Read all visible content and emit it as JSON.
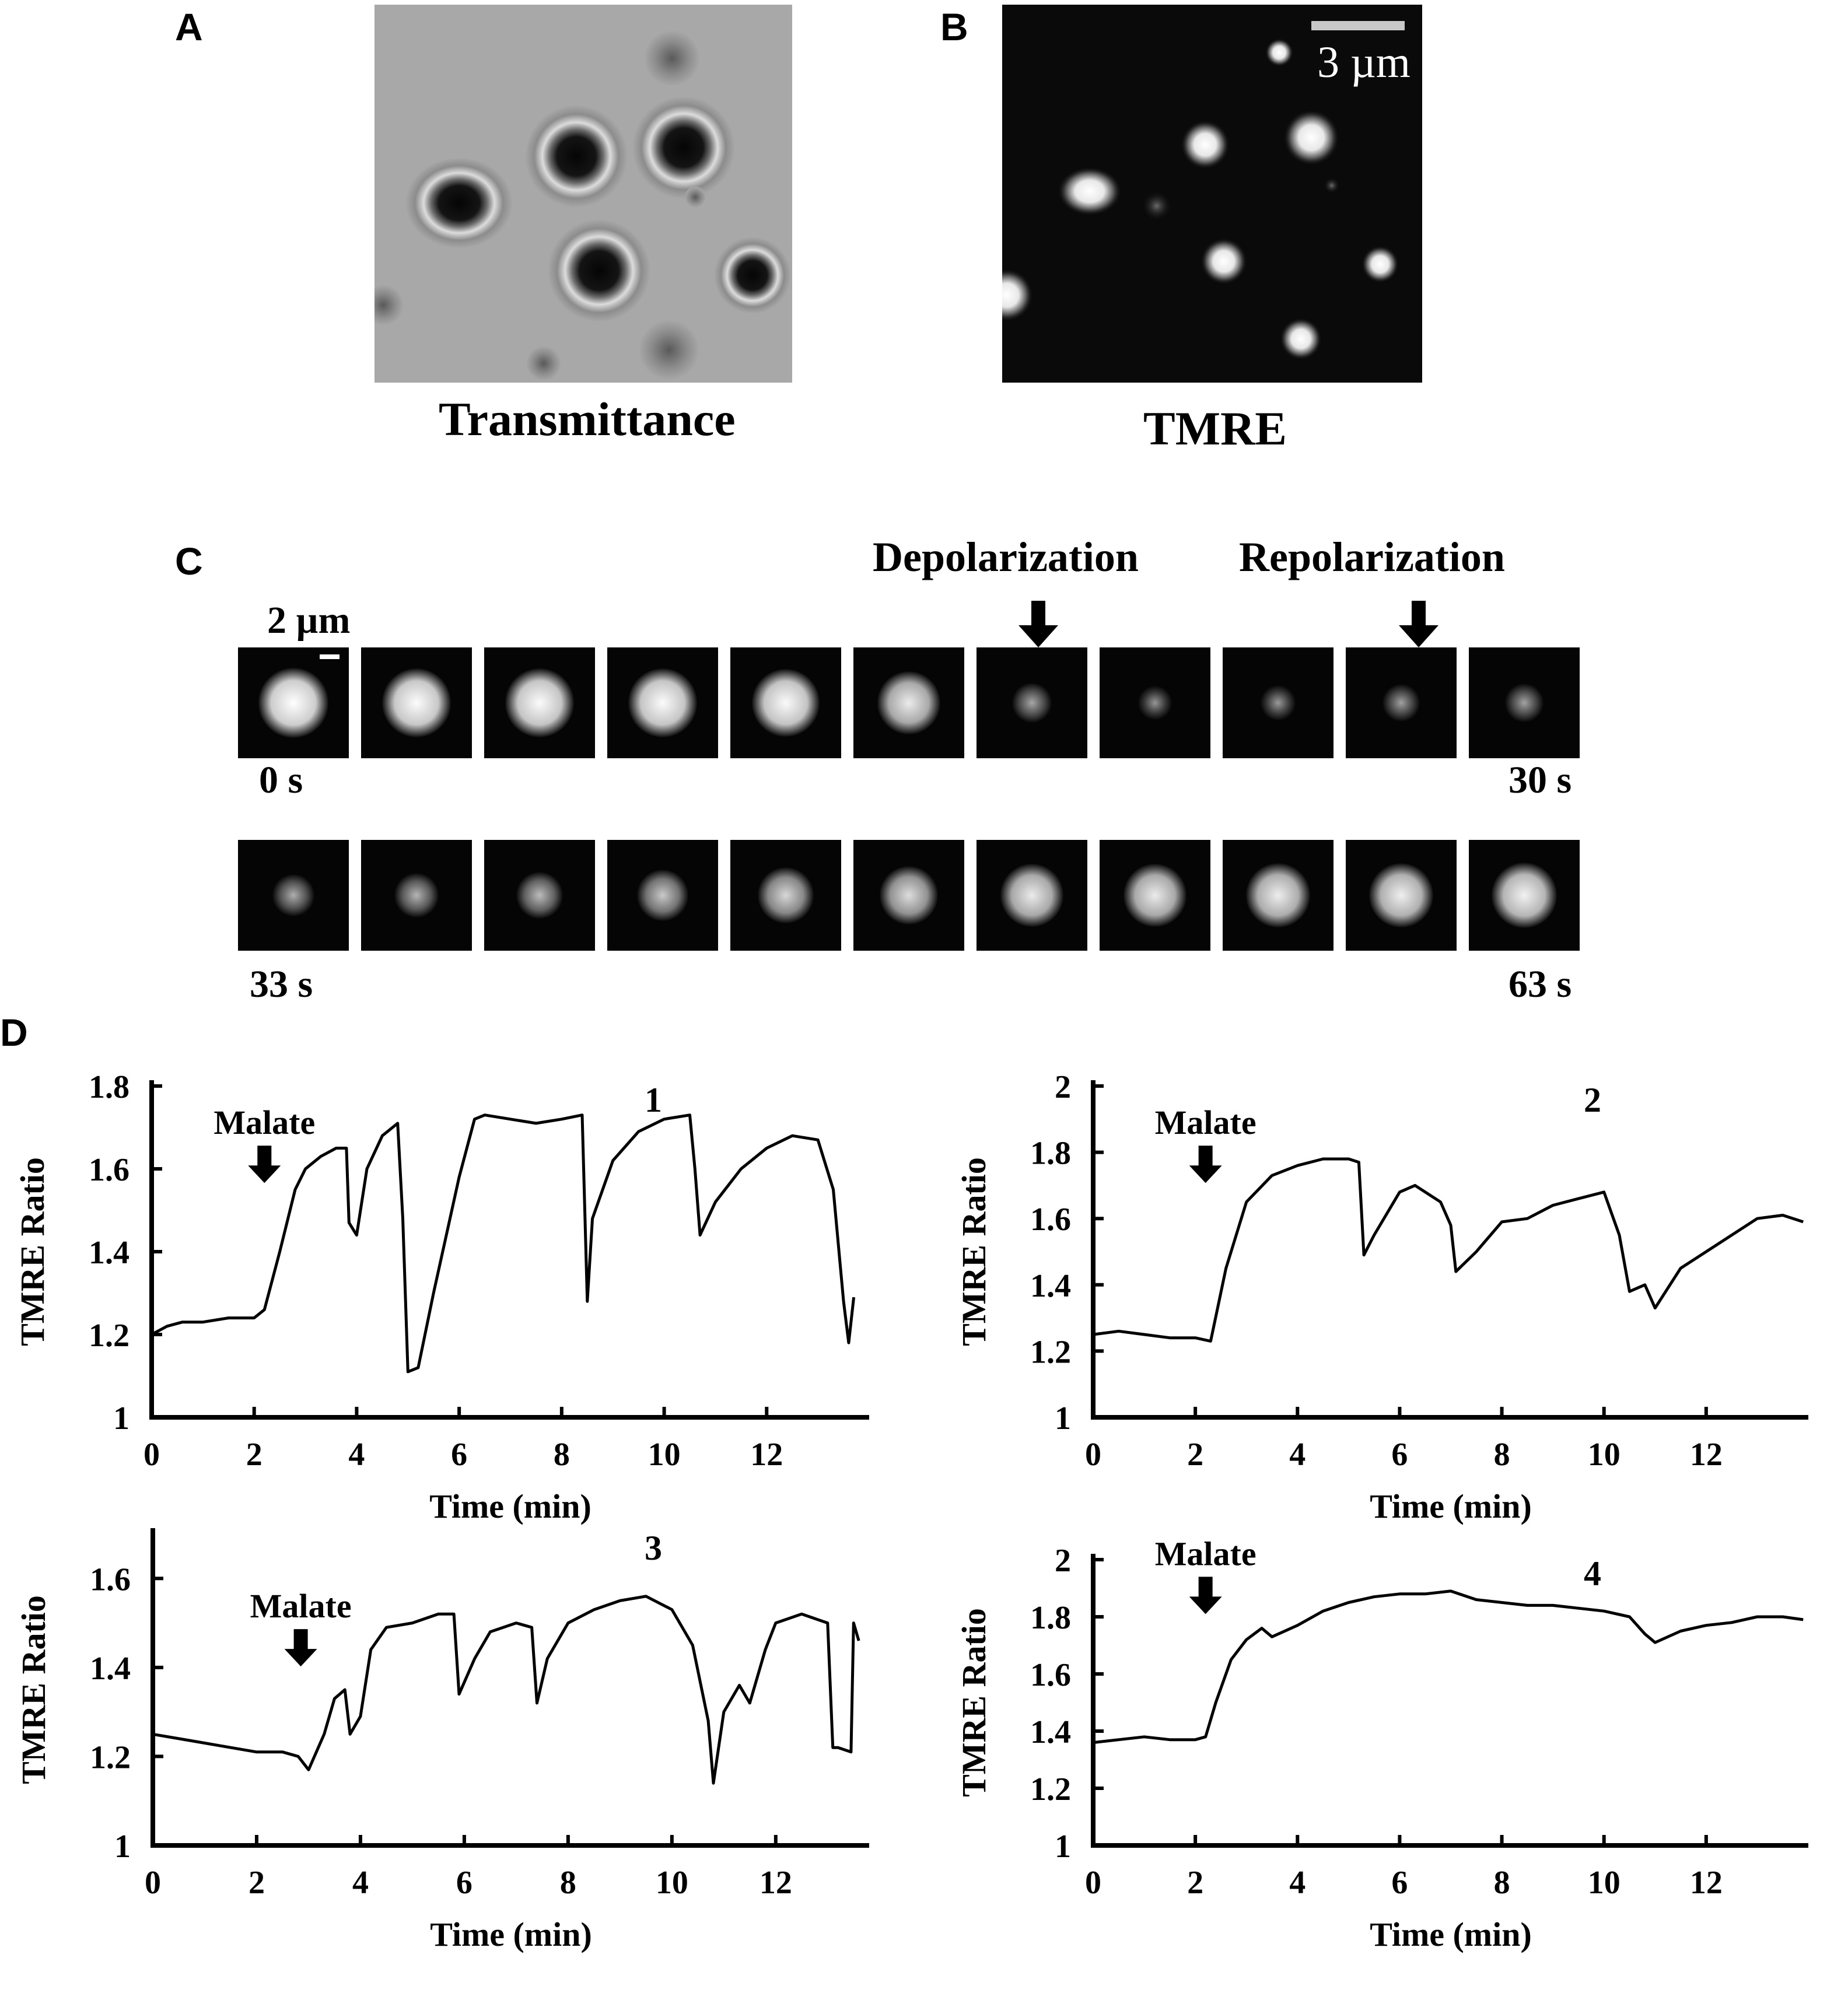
{
  "panels": {
    "A": {
      "letter": "A",
      "caption": "Transmittance"
    },
    "B": {
      "letter": "B",
      "caption": "TMRE",
      "scalebar_label": "3 µm"
    },
    "C": {
      "letter": "C",
      "scalebar_label": "2 µm",
      "depolarization_label": "Depolarization",
      "repolarization_label": "Repolarization",
      "row1_start": "0 s",
      "row1_end": "30 s",
      "row2_start": "33 s",
      "row2_end": "63 s",
      "row1_brightness": [
        1.0,
        0.98,
        0.97,
        0.97,
        0.96,
        0.85,
        0.35,
        0.22,
        0.25,
        0.3,
        0.32
      ],
      "row2_brightness": [
        0.4,
        0.45,
        0.5,
        0.6,
        0.7,
        0.75,
        0.85,
        0.85,
        0.87,
        0.88,
        0.9
      ]
    },
    "D": {
      "letter": "D"
    }
  },
  "chart_data": [
    {
      "type": "line",
      "panel_label": "1",
      "annotation": "Malate",
      "annotation_x": 2.2,
      "xlabel": "Time (min)",
      "ylabel": "TMRE Ratio",
      "xlim": [
        0,
        14
      ],
      "ylim": [
        1,
        1.8
      ],
      "xticks": [
        "0",
        "2",
        "4",
        "6",
        "8",
        "10",
        "12"
      ],
      "yticks": [
        "1",
        "1.2",
        "1.4",
        "1.6",
        "1.8"
      ],
      "series": [
        {
          "x": [
            0,
            0.3,
            0.6,
            1,
            1.5,
            2,
            2.2,
            2.5,
            2.8,
            3,
            3.3,
            3.6,
            3.8,
            3.85,
            4,
            4.2,
            4.5,
            4.8,
            4.9,
            5,
            5.2,
            5.5,
            6,
            6.3,
            6.5,
            7,
            7.5,
            8,
            8.4,
            8.5,
            8.6,
            9,
            9.5,
            10,
            10.5,
            10.6,
            10.7,
            11,
            11.5,
            12,
            12.5,
            13,
            13.3,
            13.5,
            13.6,
            13.7
          ],
          "y": [
            1.2,
            1.22,
            1.23,
            1.23,
            1.24,
            1.24,
            1.26,
            1.4,
            1.55,
            1.6,
            1.63,
            1.65,
            1.65,
            1.47,
            1.44,
            1.6,
            1.68,
            1.71,
            1.48,
            1.11,
            1.12,
            1.3,
            1.58,
            1.72,
            1.73,
            1.72,
            1.71,
            1.72,
            1.73,
            1.28,
            1.48,
            1.62,
            1.69,
            1.72,
            1.73,
            1.6,
            1.44,
            1.52,
            1.6,
            1.65,
            1.68,
            1.67,
            1.55,
            1.28,
            1.18,
            1.29
          ]
        }
      ]
    },
    {
      "type": "line",
      "panel_label": "2",
      "annotation": "Malate",
      "annotation_x": 2.2,
      "xlabel": "Time (min)",
      "ylabel": "TMRE Ratio",
      "xlim": [
        0,
        14
      ],
      "ylim": [
        1,
        2
      ],
      "xticks": [
        "0",
        "2",
        "4",
        "6",
        "8",
        "10",
        "12"
      ],
      "yticks": [
        "1",
        "1.2",
        "1.4",
        "1.6",
        "1.8",
        "2"
      ],
      "series": [
        {
          "x": [
            0,
            0.5,
            1,
            1.5,
            2,
            2.3,
            2.6,
            3,
            3.5,
            4,
            4.5,
            5,
            5.2,
            5.3,
            5.5,
            6,
            6.3,
            6.8,
            7,
            7.1,
            7.5,
            8,
            8.5,
            9,
            9.5,
            10,
            10.3,
            10.5,
            10.8,
            11,
            11.5,
            12,
            12.5,
            13,
            13.5,
            13.9
          ],
          "y": [
            1.25,
            1.26,
            1.25,
            1.24,
            1.24,
            1.23,
            1.45,
            1.65,
            1.73,
            1.76,
            1.78,
            1.78,
            1.77,
            1.49,
            1.55,
            1.68,
            1.7,
            1.65,
            1.58,
            1.44,
            1.5,
            1.59,
            1.6,
            1.64,
            1.66,
            1.68,
            1.55,
            1.38,
            1.4,
            1.33,
            1.45,
            1.5,
            1.55,
            1.6,
            1.61,
            1.59
          ]
        }
      ]
    },
    {
      "type": "line",
      "panel_label": "3",
      "annotation": "Malate",
      "annotation_x": 2.85,
      "xlabel": "Time (min)",
      "ylabel": "TMRE Ratio",
      "xlim": [
        0,
        13.8
      ],
      "ylim": [
        1,
        1.7
      ],
      "xticks": [
        "0",
        "2",
        "4",
        "6",
        "8",
        "10",
        "12"
      ],
      "yticks": [
        "1",
        "1.2",
        "1.4",
        "1.6"
      ],
      "series": [
        {
          "x": [
            0,
            0.5,
            1,
            1.5,
            2,
            2.5,
            2.8,
            3,
            3.3,
            3.5,
            3.7,
            3.8,
            4,
            4.2,
            4.5,
            5,
            5.5,
            5.8,
            5.9,
            6.2,
            6.5,
            7,
            7.3,
            7.4,
            7.6,
            8,
            8.5,
            9,
            9.5,
            10,
            10.4,
            10.7,
            10.8,
            11,
            11.3,
            11.5,
            11.8,
            12,
            12.5,
            13,
            13.1,
            13.2,
            13.45,
            13.5,
            13.6
          ],
          "y": [
            1.25,
            1.24,
            1.23,
            1.22,
            1.21,
            1.21,
            1.2,
            1.17,
            1.25,
            1.33,
            1.35,
            1.25,
            1.29,
            1.44,
            1.49,
            1.5,
            1.52,
            1.52,
            1.34,
            1.42,
            1.48,
            1.5,
            1.49,
            1.32,
            1.42,
            1.5,
            1.53,
            1.55,
            1.56,
            1.53,
            1.45,
            1.28,
            1.14,
            1.3,
            1.36,
            1.32,
            1.44,
            1.5,
            1.52,
            1.5,
            1.22,
            1.22,
            1.21,
            1.5,
            1.46
          ]
        }
      ]
    },
    {
      "type": "line",
      "panel_label": "4",
      "annotation": "Malate",
      "annotation_x": 2.2,
      "xlabel": "Time (min)",
      "ylabel": "TMRE Ratio",
      "xlim": [
        0,
        14
      ],
      "ylim": [
        1,
        2
      ],
      "xticks": [
        "0",
        "2",
        "4",
        "6",
        "8",
        "10",
        "12"
      ],
      "yticks": [
        "1",
        "1.2",
        "1.4",
        "1.6",
        "1.8",
        "2"
      ],
      "series": [
        {
          "x": [
            0,
            0.5,
            1,
            1.5,
            2,
            2.2,
            2.4,
            2.7,
            3,
            3.3,
            3.5,
            4,
            4.5,
            5,
            5.5,
            6,
            6.5,
            7,
            7.5,
            8,
            8.5,
            9,
            9.5,
            10,
            10.5,
            10.8,
            11,
            11.5,
            12,
            12.5,
            13,
            13.5,
            13.9
          ],
          "y": [
            1.36,
            1.37,
            1.38,
            1.37,
            1.37,
            1.38,
            1.5,
            1.65,
            1.72,
            1.76,
            1.73,
            1.77,
            1.82,
            1.85,
            1.87,
            1.88,
            1.88,
            1.89,
            1.86,
            1.85,
            1.84,
            1.84,
            1.83,
            1.82,
            1.8,
            1.74,
            1.71,
            1.75,
            1.77,
            1.78,
            1.8,
            1.8,
            1.79
          ]
        }
      ]
    }
  ]
}
